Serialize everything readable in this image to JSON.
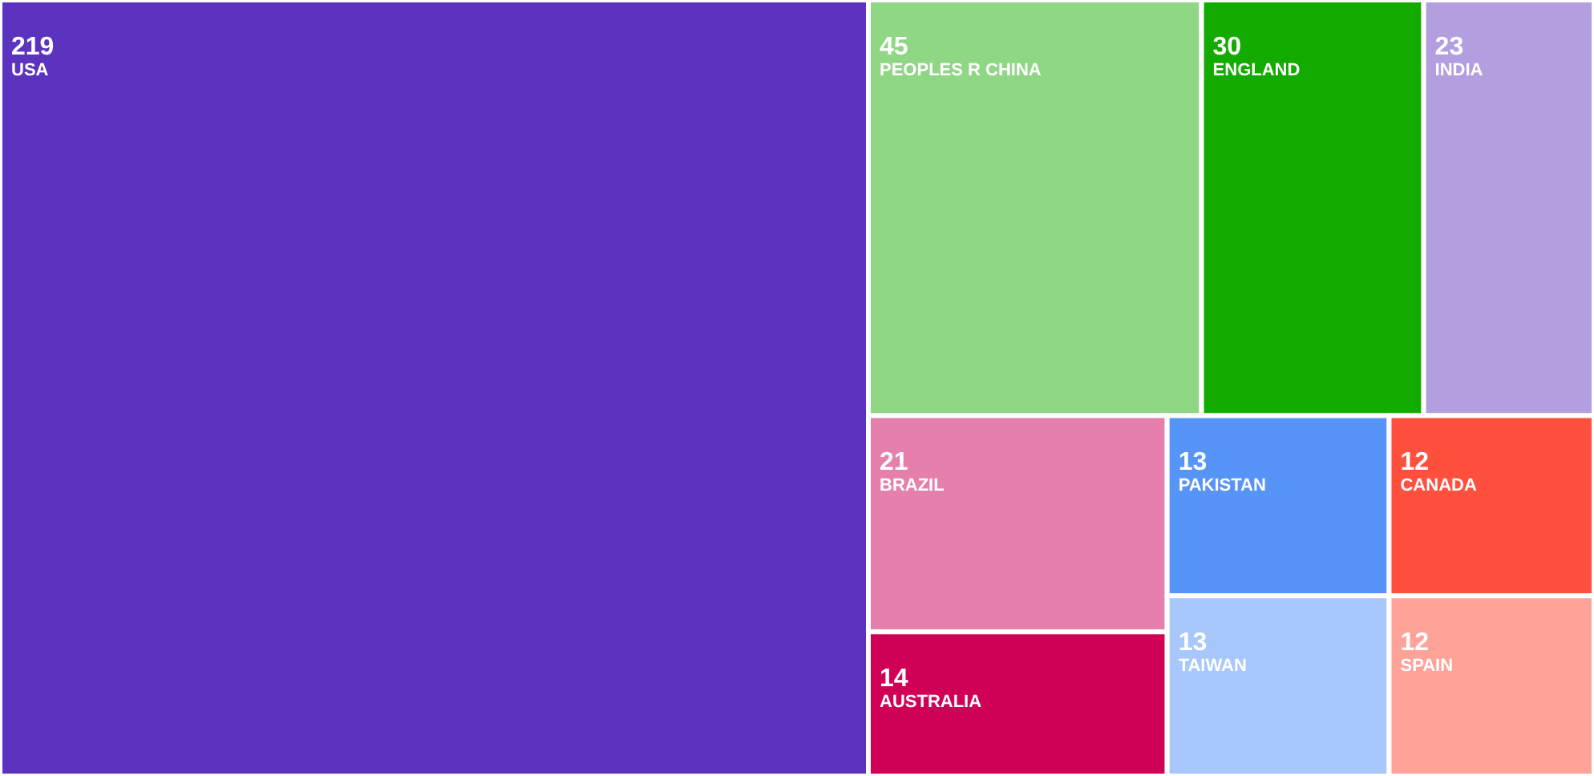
{
  "chart_data": {
    "type": "other",
    "categories": [
      "USA",
      "PEOPLES R CHINA",
      "ENGLAND",
      "INDIA",
      "BRAZIL",
      "AUSTRALIA",
      "PAKISTAN",
      "TAIWAN",
      "CANADA",
      "SPAIN"
    ],
    "values": [
      219,
      45,
      30,
      23,
      21,
      14,
      13,
      13,
      12,
      12
    ],
    "colors": [
      "#5c33bf",
      "#8fd685",
      "#13ab00",
      "#b39fe0",
      "#e57fab",
      "#cf0055",
      "#5794f7",
      "#a8c7fa",
      "#ff4f3d",
      "#ffa399"
    ],
    "data_labels": true
  }
}
